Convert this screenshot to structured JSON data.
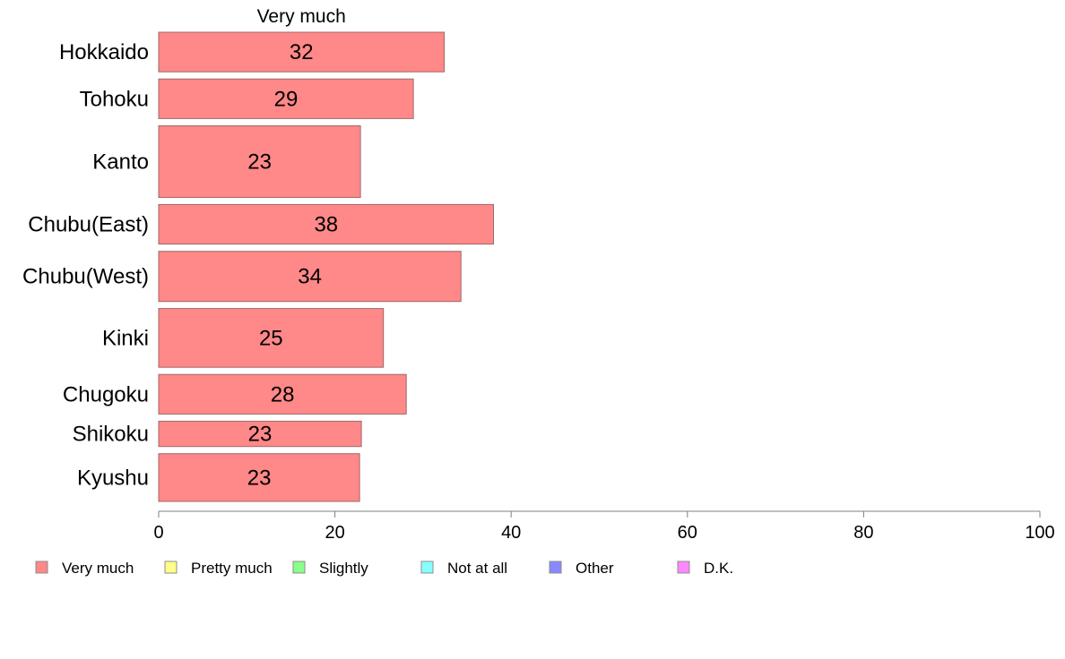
{
  "chart_data": {
    "type": "bar",
    "orientation": "horizontal",
    "stacked": true,
    "series_title": "Very much",
    "categories": [
      "Hokkaido",
      "Tohoku",
      "Kanto",
      "Chubu(East)",
      "Chubu(West)",
      "Kinki",
      "Chugoku",
      "Shikoku",
      "Kyushu"
    ],
    "series": [
      {
        "name": "Very much",
        "color": "#ff8888",
        "values": [
          32.4,
          28.9,
          22.9,
          38.0,
          34.3,
          25.5,
          28.1,
          23.0,
          22.8
        ],
        "labels": [
          "32",
          "29",
          "23",
          "38",
          "34",
          "25",
          "28",
          "23",
          "23"
        ]
      }
    ],
    "relative_widths": [
      0.83,
      0.83,
      1.5,
      0.83,
      1.05,
      1.23,
      0.83,
      0.53,
      1.0
    ],
    "xlim": [
      0,
      100
    ],
    "xticks": [
      0,
      20,
      40,
      60,
      80,
      100
    ],
    "grid": false,
    "legend_position": "bottom",
    "legend": [
      {
        "label": "Very much",
        "color": "#ff8888"
      },
      {
        "label": "Pretty much",
        "color": "#ffff88"
      },
      {
        "label": "Slightly",
        "color": "#88ff88"
      },
      {
        "label": "Not at all",
        "color": "#88ffff"
      },
      {
        "label": "Other",
        "color": "#8888ff"
      },
      {
        "label": "D.K.",
        "color": "#ff88ff"
      }
    ]
  }
}
